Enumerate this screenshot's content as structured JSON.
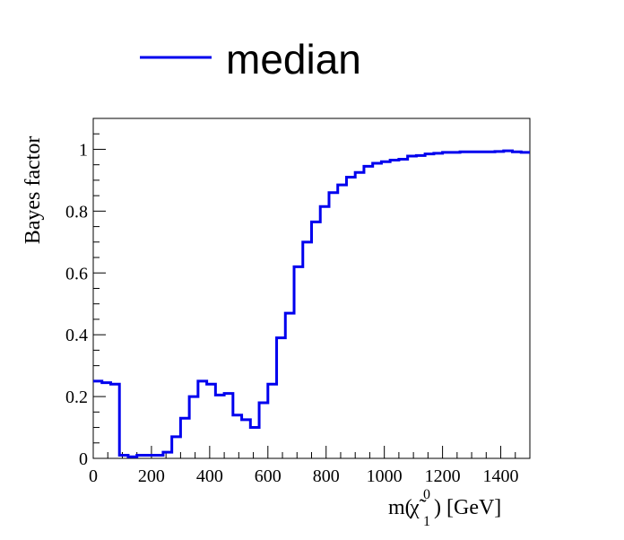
{
  "chart_data": {
    "type": "line",
    "step": true,
    "x_edges": [
      0,
      30,
      60,
      90,
      120,
      150,
      180,
      210,
      240,
      270,
      300,
      330,
      360,
      390,
      420,
      450,
      480,
      510,
      540,
      570,
      600,
      630,
      660,
      690,
      720,
      750,
      780,
      810,
      840,
      870,
      900,
      930,
      960,
      990,
      1020,
      1050,
      1080,
      1110,
      1140,
      1170,
      1200,
      1230,
      1260,
      1290,
      1320,
      1350,
      1380,
      1410,
      1440,
      1470,
      1500
    ],
    "series": [
      {
        "name": "median",
        "color": "#0000ee",
        "values": [
          0.25,
          0.245,
          0.24,
          0.01,
          0.005,
          0.01,
          0.01,
          0.01,
          0.02,
          0.07,
          0.13,
          0.2,
          0.25,
          0.24,
          0.205,
          0.21,
          0.14,
          0.125,
          0.1,
          0.18,
          0.24,
          0.39,
          0.47,
          0.62,
          0.7,
          0.765,
          0.815,
          0.86,
          0.885,
          0.91,
          0.925,
          0.945,
          0.955,
          0.96,
          0.965,
          0.968,
          0.978,
          0.98,
          0.985,
          0.987,
          0.99,
          0.99,
          0.992,
          0.992,
          0.992,
          0.992,
          0.993,
          0.995,
          0.992,
          0.99
        ]
      }
    ],
    "xlim": [
      0,
      1500
    ],
    "ylim": [
      0,
      1.1
    ],
    "x_ticks": [
      "0",
      "200",
      "400",
      "600",
      "800",
      "1000",
      "1200",
      "1400"
    ],
    "y_ticks": [
      "0",
      "0.2",
      "0.4",
      "0.6",
      "0.8",
      "1"
    ],
    "ylabel": "Bayes factor",
    "xlabel_prefix": "m(",
    "xlabel_symbol": "χ̃",
    "xlabel_sup": "0",
    "xlabel_sub": "1",
    "xlabel_suffix": ") [GeV]",
    "legend": {
      "position": "top",
      "entries": [
        "median"
      ]
    },
    "grid": false
  }
}
